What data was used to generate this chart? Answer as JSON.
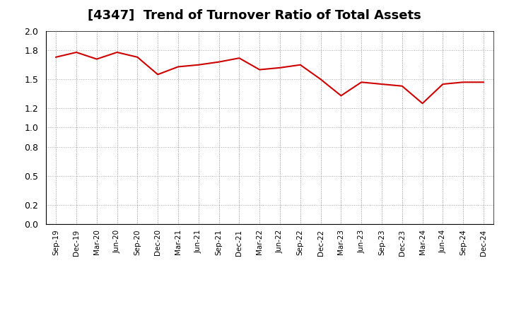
{
  "title": "[4347]  Trend of Turnover Ratio of Total Assets",
  "title_fontsize": 13,
  "line_color": "#cc0000",
  "line_width": 1.5,
  "background_color": "#ffffff",
  "grid_color": "#aaaaaa",
  "ylim": [
    0.0,
    2.0
  ],
  "yticks": [
    0.0,
    0.2,
    0.5,
    0.8,
    1.0,
    1.2,
    1.5,
    1.8,
    2.0
  ],
  "x_labels": [
    "Sep-19",
    "Dec-19",
    "Mar-20",
    "Jun-20",
    "Sep-20",
    "Dec-20",
    "Mar-21",
    "Jun-21",
    "Sep-21",
    "Dec-21",
    "Mar-22",
    "Jun-22",
    "Sep-22",
    "Dec-22",
    "Mar-23",
    "Jun-23",
    "Sep-23",
    "Dec-23",
    "Mar-24",
    "Jun-24",
    "Sep-24",
    "Dec-24"
  ],
  "values": [
    1.73,
    1.78,
    1.71,
    1.78,
    1.73,
    1.55,
    1.63,
    1.65,
    1.68,
    1.72,
    1.6,
    1.62,
    1.65,
    1.5,
    1.33,
    1.47,
    1.45,
    1.43,
    1.25,
    1.45,
    1.47,
    1.47
  ]
}
